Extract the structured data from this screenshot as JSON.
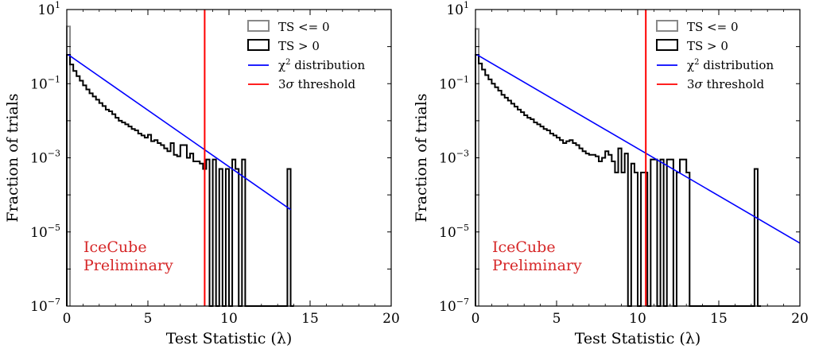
{
  "chart_data": [
    {
      "type": "histogram",
      "xlabel": "Test Statistic (λ)",
      "ylabel": "Fraction of trials",
      "xlim": [
        0,
        20
      ],
      "ylim": [
        1e-07,
        10
      ],
      "yscale": "log",
      "grid": false,
      "legend_position": "top-right",
      "xticks": [
        "0",
        "5",
        "10",
        "15",
        "20"
      ],
      "yticks": [
        {
          "base": "10",
          "exp": "1",
          "value": 10
        },
        {
          "base": "10",
          "exp": "−1",
          "value": 0.1
        },
        {
          "base": "10",
          "exp": "−3",
          "value": 0.001
        },
        {
          "base": "10",
          "exp": "−5",
          "value": 1e-05
        },
        {
          "base": "10",
          "exp": "−7",
          "value": 1e-07
        }
      ],
      "legend": [
        {
          "label": "TS <= 0",
          "kind": "box",
          "color": "#888888"
        },
        {
          "label": "TS > 0",
          "kind": "box",
          "color": "#000000"
        },
        {
          "label": "χ",
          "sup": "2",
          "suffix": " distribution",
          "kind": "line",
          "color": "#0000ff"
        },
        {
          "label": "3",
          "sigma": "σ",
          "suffix": " threshold",
          "kind": "line",
          "color": "#ff0000"
        }
      ],
      "annotation": [
        "IceCube",
        "Preliminary"
      ],
      "annotation_color": "#d62728",
      "threshold": 8.5,
      "bin_width": 0.2,
      "ts_le_0": {
        "x_range": [
          0,
          0.2
        ],
        "value": 3.5
      },
      "ts_gt_0": {
        "x_start": 0,
        "values": [
          0.6,
          0.33,
          0.22,
          0.16,
          0.12,
          0.09,
          0.07,
          0.055,
          0.045,
          0.037,
          0.03,
          0.025,
          0.02,
          0.018,
          0.015,
          0.012,
          0.01,
          0.009,
          0.008,
          0.007,
          0.006,
          0.0055,
          0.0045,
          0.004,
          0.0035,
          0.0042,
          0.0028,
          0.003,
          0.0025,
          0.0022,
          0.0018,
          0.0015,
          0.0025,
          0.0012,
          0.0011,
          0.0022,
          0.0022,
          0.001,
          0.0013,
          0.0008,
          0.0008,
          0.0007,
          0.0005,
          0.0009,
          0,
          0.0009,
          0,
          0.0005,
          0,
          0.0005,
          0,
          0.0009,
          0.0005,
          0,
          0.0009,
          0,
          0,
          0,
          0,
          0,
          0,
          0,
          0,
          0,
          0,
          0,
          0,
          0,
          0.0005,
          0
        ]
      },
      "chi2_fit": {
        "x": [
          0.1,
          13.8
        ],
        "y": [
          0.6,
          4e-05
        ]
      }
    },
    {
      "type": "histogram",
      "xlabel": "Test Statistic (λ)",
      "ylabel": "Fraction of trials",
      "xlim": [
        0,
        20
      ],
      "ylim": [
        1e-07,
        10
      ],
      "yscale": "log",
      "grid": false,
      "legend_position": "top-right",
      "xticks": [
        "0",
        "5",
        "10",
        "15",
        "20"
      ],
      "yticks": [
        {
          "base": "10",
          "exp": "1",
          "value": 10
        },
        {
          "base": "10",
          "exp": "−1",
          "value": 0.1
        },
        {
          "base": "10",
          "exp": "−3",
          "value": 0.001
        },
        {
          "base": "10",
          "exp": "−5",
          "value": 1e-05
        },
        {
          "base": "10",
          "exp": "−7",
          "value": 1e-07
        }
      ],
      "legend": [
        {
          "label": "TS <= 0",
          "kind": "box",
          "color": "#888888"
        },
        {
          "label": "TS > 0",
          "kind": "box",
          "color": "#000000"
        },
        {
          "label": "χ",
          "sup": "2",
          "suffix": " distribution",
          "kind": "line",
          "color": "#0000ff"
        },
        {
          "label": "3",
          "sigma": "σ",
          "suffix": " threshold",
          "kind": "line",
          "color": "#ff0000"
        }
      ],
      "annotation": [
        "IceCube",
        "Preliminary"
      ],
      "annotation_color": "#d62728",
      "threshold": 10.5,
      "bin_width": 0.2,
      "ts_le_0": {
        "x_range": [
          0,
          0.2
        ],
        "value": 3.0
      },
      "ts_gt_0": {
        "x_start": 0,
        "values": [
          0.6,
          0.35,
          0.24,
          0.17,
          0.13,
          0.1,
          0.08,
          0.065,
          0.05,
          0.042,
          0.035,
          0.029,
          0.024,
          0.02,
          0.017,
          0.014,
          0.012,
          0.011,
          0.009,
          0.008,
          0.007,
          0.006,
          0.0055,
          0.0045,
          0.004,
          0.0035,
          0.003,
          0.0025,
          0.0028,
          0.003,
          0.0025,
          0.0022,
          0.0018,
          0.0015,
          0.0013,
          0.0012,
          0.0012,
          0.0011,
          0.0008,
          0.001,
          0.0015,
          0.0012,
          0.0008,
          0.0004,
          0.0018,
          0.0004,
          0.0013,
          0,
          0.0007,
          0.0004,
          0,
          0.0004,
          0.0004,
          0,
          0.0009,
          0.0009,
          0,
          0.0009,
          0,
          0.0009,
          0.0009,
          0,
          0.0004,
          0.0009,
          0.0009,
          0.0004,
          0,
          0,
          0,
          0,
          0,
          0,
          0,
          0,
          0,
          0,
          0,
          0,
          0,
          0,
          0,
          0,
          0,
          0,
          0,
          0,
          0.0005,
          0
        ]
      },
      "chi2_fit": {
        "x": [
          0.1,
          20
        ],
        "y": [
          0.6,
          5e-06
        ]
      }
    }
  ]
}
